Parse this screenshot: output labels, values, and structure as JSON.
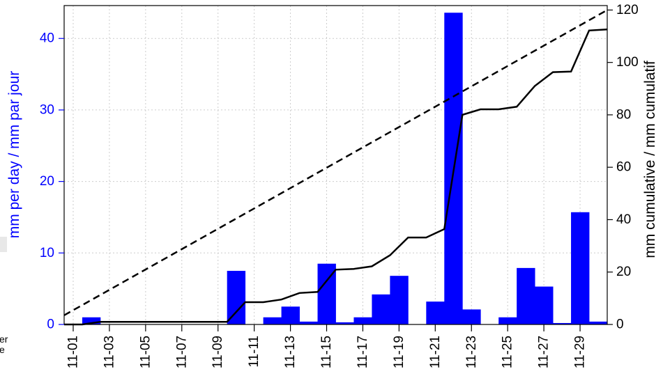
{
  "chart_data": {
    "type": "bar",
    "dates": [
      "11-01",
      "11-02",
      "11-03",
      "11-04",
      "11-05",
      "11-06",
      "11-07",
      "11-08",
      "11-09",
      "11-10",
      "11-11",
      "11-12",
      "11-13",
      "11-14",
      "11-15",
      "11-16",
      "11-17",
      "11-18",
      "11-19",
      "11-20",
      "11-21",
      "11-22",
      "11-23",
      "11-24",
      "11-25",
      "11-26",
      "11-27",
      "11-28",
      "11-29",
      "11-30"
    ],
    "x_tick_labels": [
      "11-01",
      "11-03",
      "11-05",
      "11-07",
      "11-09",
      "11-11",
      "11-13",
      "11-15",
      "11-17",
      "11-19",
      "11-21",
      "11-23",
      "11-25",
      "11-27",
      "11-29"
    ],
    "daily_mm": [
      0,
      1.0,
      0,
      0,
      0,
      0,
      0,
      0,
      0,
      7.5,
      0,
      1.0,
      2.5,
      0.4,
      8.5,
      0.3,
      1.0,
      4.2,
      6.8,
      0,
      3.2,
      43.6,
      2.1,
      0,
      1.0,
      7.9,
      5.3,
      0.2,
      15.7,
      0.4
    ],
    "cumulative_mm": [
      0,
      0,
      1.0,
      1.0,
      1.0,
      1.0,
      1.0,
      1.0,
      1.0,
      1.0,
      8.5,
      8.5,
      9.5,
      12.0,
      12.4,
      20.9,
      21.2,
      22.2,
      26.4,
      33.2,
      33.2,
      36.4,
      80.0,
      82.1,
      82.1,
      83.1,
      91.0,
      96.3,
      96.5,
      112.2,
      112.6
    ],
    "normal_cumulative_mm": [
      3.5,
      120.0
    ],
    "y_left": {
      "label": "mm per day / mm par jour",
      "ticks": [
        0,
        10,
        20,
        30,
        40
      ],
      "range": [
        0,
        44.6
      ]
    },
    "y_right": {
      "label": "mm cumulative / mm cumulatif",
      "ticks": [
        0,
        20,
        40,
        60,
        80,
        100,
        120
      ],
      "range": [
        0,
        121.7
      ]
    },
    "grid": true,
    "colors": {
      "bars": "#0000ff",
      "cumulative": "#000000",
      "normal": "#000000",
      "left_axis": "#0000ff"
    }
  },
  "legend_fragments": [
    "er",
    "e"
  ]
}
